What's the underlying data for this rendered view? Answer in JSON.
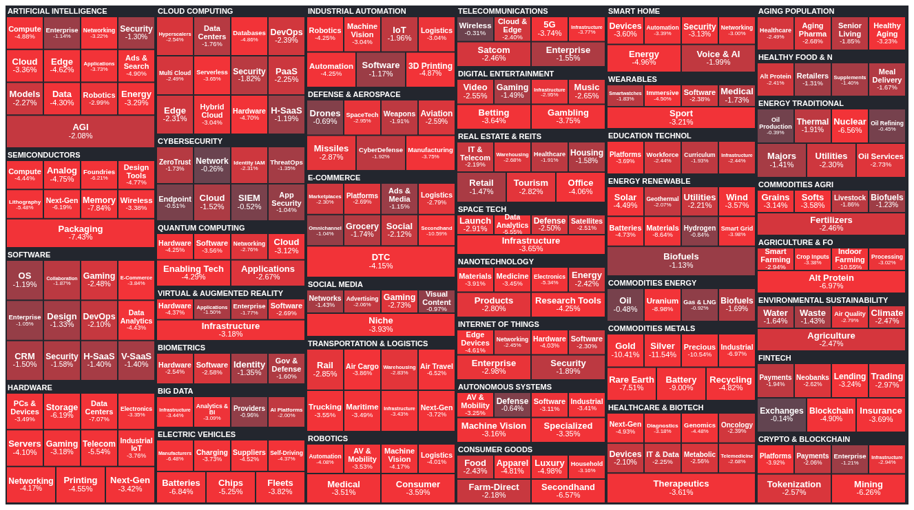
{
  "chart_data": [
    {
      "type": "other",
      "title": "ARTIFICIAL INTELLIGENCE",
      "categories": [
        "Compute",
        "Enterprise",
        "Networking",
        "Security",
        "Cloud",
        "Edge",
        "Applications",
        "Ads & Search",
        "Models",
        "Data",
        "Robotics",
        "Energy",
        "AGI"
      ],
      "values": [
        -4.88,
        -1.14,
        -3.22,
        -1.3,
        -3.36,
        -4.62,
        -3.73,
        -4.9,
        -2.27,
        -4.3,
        -2.99,
        -3.29,
        -2.08
      ],
      "value_labels": [
        "-4.88%",
        "-1.14%",
        "-3.22%",
        "-1.30%",
        "-3.36%",
        "-4.62%",
        "-3.73%",
        "-4.90%",
        "-2.27%",
        "-4.30%",
        "-2.99%",
        "-3.29%",
        "-2.08%"
      ]
    },
    {
      "type": "other",
      "title": "SEMICONDUCTORS",
      "categories": [
        "Compute",
        "Analog",
        "Foundries",
        "Design Tools",
        "Lithography",
        "Next-Gen",
        "Memory",
        "Wireless",
        "Packaging"
      ],
      "values": [
        -4.44,
        -4.75,
        -6.21,
        -4.77,
        -5.48,
        -6.19,
        -7.84,
        -3.38,
        -7.43
      ],
      "value_labels": [
        "-4.44%",
        "-4.75%",
        "-6.21%",
        "-4.77%",
        "-5.48%",
        "-6.19%",
        "-7.84%",
        "-3.38%",
        "-7.43%"
      ]
    },
    {
      "type": "other",
      "title": "SOFTWARE",
      "categories": [
        "OS",
        "Collaboration",
        "Gaming",
        "E-Commerce",
        "Enterprise",
        "Design",
        "DevOps",
        "Data Analytics",
        "CRM",
        "Security",
        "H-SaaS",
        "V-SaaS"
      ],
      "values": [
        -1.19,
        -1.87,
        -2.48,
        -3.84,
        -1.05,
        -1.33,
        -2.1,
        -4.43,
        -1.5,
        -1.58,
        -1.4,
        -1.4
      ],
      "value_labels": [
        "-1.19%",
        "-1.87%",
        "-2.48%",
        "-3.84%",
        "-1.05%",
        "-1.33%",
        "-2.10%",
        "-4.43%",
        "-1.50%",
        "-1.58%",
        "-1.40%",
        "-1.40%"
      ]
    },
    {
      "type": "other",
      "title": "HARDWARE",
      "categories": [
        "PCs & Devices",
        "Storage",
        "Data Centers",
        "Electronics",
        "Servers",
        "Gaming",
        "Telecom",
        "Industrial IoT",
        "Networking",
        "Printing",
        "Next-Gen"
      ],
      "values": [
        -3.49,
        -6.19,
        -7.07,
        -3.35,
        -4.1,
        -3.18,
        -5.54,
        -3.76,
        -4.17,
        -4.55,
        -3.42
      ],
      "value_labels": [
        "-3.49%",
        "-6.19%",
        "-7.07%",
        "-3.35%",
        "-4.10%",
        "-3.18%",
        "-5.54%",
        "-3.76%",
        "-4.17%",
        "-4.55%",
        "-3.42%"
      ]
    },
    {
      "type": "other",
      "title": "CLOUD COMPUTING",
      "categories": [
        "Hyperscalers",
        "Data Centers",
        "Databases",
        "DevOps",
        "Multi Cloud",
        "Serverless",
        "Security",
        "PaaS",
        "Edge",
        "Hybrid Cloud",
        "Hardware",
        "H-SaaS"
      ],
      "values": [
        -2.54,
        -1.76,
        -4.86,
        -2.39,
        -2.49,
        -3.65,
        -1.82,
        -2.25,
        -2.31,
        -3.04,
        -4.7,
        -1.19
      ],
      "value_labels": [
        "-2.54%",
        "-1.76%",
        "-4.86%",
        "-2.39%",
        "-2.49%",
        "-3.65%",
        "-1.82%",
        "-2.25%",
        "-2.31%",
        "-3.04%",
        "-4.70%",
        "-1.19%"
      ]
    },
    {
      "type": "other",
      "title": "CYBERSECURITY",
      "categories": [
        "ZeroTrust",
        "Network",
        "Identity IAM",
        "ThreatOps",
        "Endpoint",
        "Cloud",
        "SIEM",
        "App Security"
      ],
      "values": [
        -1.73,
        -0.26,
        -2.31,
        -1.35,
        -0.51,
        -1.52,
        -0.52,
        -1.04
      ],
      "value_labels": [
        "-1.73%",
        "-0.26%",
        "-2.31%",
        "-1.35%",
        "-0.51%",
        "-1.52%",
        "-0.52%",
        "-1.04%"
      ]
    },
    {
      "type": "other",
      "title": "QUANTUM COMPUTING",
      "categories": [
        "Hardware",
        "Software",
        "Networking",
        "Cloud",
        "Enabling Tech",
        "Applications"
      ],
      "values": [
        -4.25,
        -3.56,
        -2.76,
        -3.12,
        -4.29,
        -2.67
      ],
      "value_labels": [
        "-4.25%",
        "-3.56%",
        "-2.76%",
        "-3.12%",
        "-4.29%",
        "-2.67%"
      ]
    },
    {
      "type": "other",
      "title": "VIRTUAL & AUGMENTED REALITY",
      "categories": [
        "Hardware",
        "Applications",
        "Enterprise",
        "Software",
        "Infrastructure"
      ],
      "values": [
        -4.37,
        -1.5,
        -1.77,
        -2.69,
        -3.18
      ],
      "value_labels": [
        "-4.37%",
        "-1.50%",
        "-1.77%",
        "-2.69%",
        "-3.18%"
      ]
    },
    {
      "type": "other",
      "title": "BIOMETRICS",
      "categories": [
        "Hardware",
        "Software",
        "Identity",
        "Gov & Defense"
      ],
      "values": [
        -2.54,
        -2.58,
        -1.35,
        -1.6
      ],
      "value_labels": [
        "-2.54%",
        "-2.58%",
        "-1.35%",
        "-1.60%"
      ]
    },
    {
      "type": "other",
      "title": "BIG DATA",
      "categories": [
        "Infrastructure",
        "Analytics & BI",
        "Providers",
        "AI Platforms"
      ],
      "values": [
        -3.44,
        -3.09,
        -0.96,
        -2.0
      ],
      "value_labels": [
        "-3.44%",
        "-3.09%",
        "-0.96%",
        "-2.00%"
      ]
    },
    {
      "type": "other",
      "title": "ELECTRIC VEHICLES",
      "categories": [
        "Manufacturers",
        "Charging",
        "Suppliers",
        "Self-Driving",
        "Batteries",
        "Chips",
        "Fleets"
      ],
      "values": [
        -6.48,
        -3.73,
        -4.52,
        -4.37,
        -6.84,
        -5.25,
        -3.82
      ],
      "value_labels": [
        "-6.48%",
        "-3.73%",
        "-4.52%",
        "-4.37%",
        "-6.84%",
        "-5.25%",
        "-3.82%"
      ]
    },
    {
      "type": "other",
      "title": "INDUSTRIAL AUTOMATION",
      "categories": [
        "Robotics",
        "Machine Vision",
        "IoT",
        "Logistics",
        "Automation",
        "Software",
        "3D Printing"
      ],
      "values": [
        -4.25,
        -3.04,
        -1.96,
        -3.04,
        -4.25,
        -1.17,
        -4.87
      ],
      "value_labels": [
        "-4.25%",
        "-3.04%",
        "-1.96%",
        "-3.04%",
        "-4.25%",
        "-1.17%",
        "-4.87%"
      ]
    },
    {
      "type": "other",
      "title": "DEFENSE & AEROSPACE",
      "categories": [
        "Drones",
        "SpaceTech",
        "Weapons",
        "Aviation",
        "Missiles",
        "CyberDefense",
        "Manufacturing"
      ],
      "values": [
        -0.69,
        -2.95,
        -1.91,
        -2.59,
        -2.87,
        -1.92,
        -3.75
      ],
      "value_labels": [
        "-0.69%",
        "-2.95%",
        "-1.91%",
        "-2.59%",
        "-2.87%",
        "-1.92%",
        "-3.75%"
      ]
    },
    {
      "type": "other",
      "title": "E-COMMERCE",
      "categories": [
        "Marketplaces",
        "Platforms",
        "Ads & Media",
        "Logistics",
        "Omnichannel",
        "Grocery",
        "Social",
        "Secondhand",
        "DTC"
      ],
      "values": [
        -2.3,
        -2.69,
        -1.15,
        -2.79,
        -1.04,
        -1.74,
        -2.12,
        -10.59,
        -4.15
      ],
      "value_labels": [
        "-2.30%",
        "-2.69%",
        "-1.15%",
        "-2.79%",
        "-1.04%",
        "-1.74%",
        "-2.12%",
        "-10.59%",
        "-4.15%"
      ]
    },
    {
      "type": "other",
      "title": "SOCIAL MEDIA",
      "categories": [
        "Networks",
        "Advertising",
        "Gaming",
        "Visual Content",
        "Niche"
      ],
      "values": [
        -1.43,
        -2.06,
        -2.73,
        -0.97,
        -3.93
      ],
      "value_labels": [
        "-1.43%",
        "-2.06%",
        "-2.73%",
        "-0.97%",
        "-3.93%"
      ]
    },
    {
      "type": "other",
      "title": "TRANSPORTATION & LOGISTICS",
      "categories": [
        "Rail",
        "Air Cargo",
        "Warehousing",
        "Air Travel",
        "Trucking",
        "Maritime",
        "Infrastructure",
        "Next-Gen"
      ],
      "values": [
        -2.85,
        -3.86,
        -2.83,
        -6.52,
        -3.55,
        -3.49,
        -3.43,
        -3.72
      ],
      "value_labels": [
        "-2.85%",
        "-3.86%",
        "-2.83%",
        "-6.52%",
        "-3.55%",
        "-3.49%",
        "-3.43%",
        "-3.72%"
      ]
    },
    {
      "type": "other",
      "title": "ROBOTICS",
      "categories": [
        "Automation",
        "AV & Mobility",
        "Machine Vision",
        "Logistics",
        "Medical",
        "Consumer"
      ],
      "values": [
        -4.08,
        -3.53,
        -4.17,
        -4.01,
        -3.51,
        -3.59
      ],
      "value_labels": [
        "-4.08%",
        "-3.53%",
        "-4.17%",
        "-4.01%",
        "-3.51%",
        "-3.59%"
      ]
    },
    {
      "type": "other",
      "title": "TELECOMMUNICATIONS",
      "categories": [
        "Wireless",
        "Cloud & Edge",
        "5G",
        "Infrastructure",
        "Satcom",
        "Enterprise"
      ],
      "values": [
        -0.31,
        -2.4,
        -3.74,
        -3.77,
        -2.46,
        -1.55
      ],
      "value_labels": [
        "-0.31%",
        "-2.40%",
        "-3.74%",
        "-3.77%",
        "-2.46%",
        "-1.55%"
      ]
    },
    {
      "type": "other",
      "title": "DIGITAL ENTERTAINMENT",
      "categories": [
        "Video",
        "Gaming",
        "Infrastructure",
        "Music",
        "Betting",
        "Gambling"
      ],
      "values": [
        -2.55,
        -1.49,
        -2.95,
        -2.65,
        -3.64,
        -3.75
      ],
      "value_labels": [
        "-2.55%",
        "-1.49%",
        "-2.95%",
        "-2.65%",
        "-3.64%",
        "-3.75%"
      ]
    },
    {
      "type": "other",
      "title": "REAL ESTATE & REITS",
      "categories": [
        "IT & Telecom",
        "Warehousing",
        "Healthcare",
        "Housing",
        "Retail",
        "Tourism",
        "Office"
      ],
      "values": [
        -2.19,
        -2.68,
        -1.91,
        -1.58,
        -1.47,
        -2.82,
        -4.06
      ],
      "value_labels": [
        "-2.19%",
        "-2.68%",
        "-1.91%",
        "-1.58%",
        "-1.47%",
        "-2.82%",
        "-4.06%"
      ]
    },
    {
      "type": "other",
      "title": "SPACE TECH",
      "categories": [
        "Launch",
        "Data Analytics",
        "Defense",
        "Satellites",
        "Infrastructure"
      ],
      "values": [
        -2.91,
        -5.55,
        -2.5,
        -2.51,
        -3.65
      ],
      "value_labels": [
        "-2.91%",
        "-5.55%",
        "-2.50%",
        "-2.51%",
        "-3.65%"
      ]
    },
    {
      "type": "other",
      "title": "NANOTECHNOLOGY",
      "categories": [
        "Materials",
        "Medicine",
        "Electronics",
        "Energy",
        "Products",
        "Research Tools"
      ],
      "values": [
        -3.91,
        -3.45,
        -5.34,
        -2.42,
        -2.8,
        -4.25
      ],
      "value_labels": [
        "-3.91%",
        "-3.45%",
        "-5.34%",
        "-2.42%",
        "-2.80%",
        "-4.25%"
      ]
    },
    {
      "type": "other",
      "title": "INTERNET OF THINGS",
      "categories": [
        "Edge Devices",
        "Networking",
        "Hardware",
        "Software",
        "Enterprise",
        "Security"
      ],
      "values": [
        -4.61,
        -2.45,
        -4.03,
        -2.3,
        -2.98,
        -1.89
      ],
      "value_labels": [
        "-4.61%",
        "-2.45%",
        "-4.03%",
        "-2.30%",
        "-2.98%",
        "-1.89%"
      ]
    },
    {
      "type": "other",
      "title": "AUTONOMOUS SYSTEMS",
      "categories": [
        "AV & Mobility",
        "Defense",
        "Software",
        "Industrial",
        "Machine Vision",
        "Specialized"
      ],
      "values": [
        -3.25,
        -0.64,
        -3.11,
        -3.41,
        -3.16,
        -3.35
      ],
      "value_labels": [
        "-3.25%",
        "-0.64%",
        "-3.11%",
        "-3.41%",
        "-3.16%",
        "-3.35%"
      ]
    },
    {
      "type": "other",
      "title": "CONSUMER GOODS",
      "categories": [
        "Food",
        "Apparel",
        "Luxury",
        "Household",
        "Farm-Direct",
        "Secondhand"
      ],
      "values": [
        -2.43,
        -4.81,
        -4.98,
        -3.16,
        -2.18,
        -6.57
      ],
      "value_labels": [
        "-2.43%",
        "-4.81%",
        "-4.98%",
        "-3.16%",
        "-2.18%",
        "-6.57%"
      ]
    },
    {
      "type": "other",
      "title": "SMART HOME",
      "categories": [
        "Devices",
        "Automation",
        "Security",
        "Networking",
        "Energy",
        "Voice & AI"
      ],
      "values": [
        -3.6,
        -3.39,
        -3.13,
        -3.0,
        -4.96,
        -1.99
      ],
      "value_labels": [
        "-3.60%",
        "-3.39%",
        "-3.13%",
        "-3.00%",
        "-4.96%",
        "-1.99%"
      ]
    },
    {
      "type": "other",
      "title": "WEARABLES",
      "categories": [
        "Smartwatches",
        "Immersive",
        "Software",
        "Medical",
        "Sport"
      ],
      "values": [
        -1.83,
        -4.5,
        -2.38,
        -1.73,
        -3.21
      ],
      "value_labels": [
        "-1.83%",
        "-4.50%",
        "-2.38%",
        "-1.73%",
        "-3.21%"
      ]
    },
    {
      "type": "other",
      "title": "EDUCATION TECHNOL",
      "categories": [
        "Platforms",
        "Workforce",
        "Curriculum",
        "Infrastructure"
      ],
      "values": [
        -3.69,
        -2.44,
        -1.93,
        -2.44
      ],
      "value_labels": [
        "-3.69%",
        "-2.44%",
        "-1.93%",
        "-2.44%"
      ]
    },
    {
      "type": "other",
      "title": "ENERGY RENEWABLE",
      "categories": [
        "Solar",
        "Geothermal",
        "Utilities",
        "Wind",
        "Batteries",
        "Materials",
        "Hydrogen",
        "Smart Grid",
        "Biofuels"
      ],
      "values": [
        -4.49,
        -2.07,
        -2.21,
        -3.57,
        -4.73,
        -8.64,
        -0.84,
        -3.98,
        -1.13
      ],
      "value_labels": [
        "-4.49%",
        "-2.07%",
        "-2.21%",
        "-3.57%",
        "-4.73%",
        "-8.64%",
        "-0.84%",
        "-3.98%",
        "-1.13%"
      ]
    },
    {
      "type": "other",
      "title": "COMMODITIES ENERGY",
      "categories": [
        "Oil",
        "Uranium",
        "Gas & LNG",
        "Biofuels"
      ],
      "values": [
        -0.48,
        -8.98,
        -0.92,
        -1.69
      ],
      "value_labels": [
        "-0.48%",
        "-8.98%",
        "-0.92%",
        "-1.69%"
      ]
    },
    {
      "type": "other",
      "title": "COMMODITIES METALS",
      "categories": [
        "Gold",
        "Silver",
        "Precious",
        "Industrial",
        "Rare Earth",
        "Battery",
        "Recycling"
      ],
      "values": [
        -10.41,
        -11.54,
        -10.54,
        -6.97,
        -7.51,
        -9.0,
        -4.82
      ],
      "value_labels": [
        "-10.41%",
        "-11.54%",
        "-10.54%",
        "-6.97%",
        "-7.51%",
        "-9.00%",
        "-4.82%"
      ]
    },
    {
      "type": "other",
      "title": "HEALTHCARE & BIOTECH",
      "categories": [
        "Next-Gen",
        "Diagnostics",
        "Genomics",
        "Oncology",
        "Devices",
        "IT & Data",
        "Metabolic",
        "Telemedicine",
        "Therapeutics"
      ],
      "values": [
        -4.93,
        -3.18,
        -4.48,
        -2.39,
        -2.1,
        -2.25,
        -2.56,
        -2.68,
        -3.61
      ],
      "value_labels": [
        "-4.93%",
        "-3.18%",
        "-4.48%",
        "-2.39%",
        "-2.10%",
        "-2.25%",
        "-2.56%",
        "-2.68%",
        "-3.61%"
      ]
    },
    {
      "type": "other",
      "title": "AGING POPULATION",
      "categories": [
        "Healthcare",
        "Aging Pharma",
        "Senior Living",
        "Healthy Aging"
      ],
      "values": [
        -2.49,
        -2.68,
        -1.85,
        -3.23
      ],
      "value_labels": [
        "-2.49%",
        "-2.68%",
        "-1.85%",
        "-3.23%"
      ]
    },
    {
      "type": "other",
      "title": "HEALTHY FOOD & N",
      "categories": [
        "Alt Protein",
        "Retailers",
        "Supplements",
        "Meal Delivery"
      ],
      "values": [
        -2.41,
        -1.31,
        -1.4,
        -1.67
      ],
      "value_labels": [
        "-2.41%",
        "-1.31%",
        "-1.40%",
        "-1.67%"
      ]
    },
    {
      "type": "other",
      "title": "ENERGY TRADITIONAL",
      "categories": [
        "Oil Production",
        "Thermal",
        "Nuclear",
        "Oil Refining",
        "Majors",
        "Utilities",
        "Oil Services"
      ],
      "values": [
        -0.39,
        -1.91,
        -6.56,
        -0.45,
        -1.41,
        -2.3,
        -2.73
      ],
      "value_labels": [
        "-0.39%",
        "-1.91%",
        "-6.56%",
        "-0.45%",
        "-1.41%",
        "-2.30%",
        "-2.73%"
      ]
    },
    {
      "type": "other",
      "title": "COMMODITIES AGRI",
      "categories": [
        "Grains",
        "Softs",
        "Livestock",
        "Biofuels",
        "Fertilizers"
      ],
      "values": [
        -3.14,
        -3.58,
        -1.86,
        -1.23,
        -2.46
      ],
      "value_labels": [
        "-3.14%",
        "-3.58%",
        "-1.86%",
        "-1.23%",
        "-2.46%"
      ]
    },
    {
      "type": "other",
      "title": "AGRICULTURE & FO",
      "categories": [
        "Smart Farming",
        "Crop Inputs",
        "Indoor Farming",
        "Processing",
        "Alt Protein"
      ],
      "values": [
        -2.94,
        -3.38,
        -10.55,
        -3.02,
        -6.97
      ],
      "value_labels": [
        "-2.94%",
        "-3.38%",
        "-10.55%",
        "-3.02%",
        "-6.97%"
      ]
    },
    {
      "type": "other",
      "title": "ENVIRONMENTAL SUSTAINABILITY",
      "categories": [
        "Water",
        "Waste",
        "Air Quality",
        "Climate",
        "Agriculture"
      ],
      "values": [
        -1.64,
        -1.43,
        -2.79,
        -2.47,
        -2.47
      ],
      "value_labels": [
        "-1.64%",
        "-1.43%",
        "-2.79%",
        "-2.47%",
        "-2.47%"
      ]
    },
    {
      "type": "other",
      "title": "FINTECH",
      "categories": [
        "Payments",
        "Neobanks",
        "Lending",
        "Trading",
        "Exchanges",
        "Blockchain",
        "Insurance"
      ],
      "values": [
        -1.94,
        -2.62,
        -3.24,
        -2.97,
        -0.14,
        -4.9,
        -3.69
      ],
      "value_labels": [
        "-1.94%",
        "-2.62%",
        "-3.24%",
        "-2.97%",
        "-0.14%",
        "-4.90%",
        "-3.69%"
      ]
    },
    {
      "type": "other",
      "title": "CRYPTO & BLOCKCHAIN",
      "categories": [
        "Platforms",
        "Payments",
        "Enterprise",
        "Infrastructure",
        "Tokenization",
        "Mining"
      ],
      "values": [
        -3.92,
        -2.06,
        -1.21,
        -2.94,
        -2.57,
        -6.26
      ],
      "value_labels": [
        "-3.92%",
        "-2.06%",
        "-1.21%",
        "-2.94%",
        "-2.57%",
        "-6.26%"
      ]
    }
  ]
}
